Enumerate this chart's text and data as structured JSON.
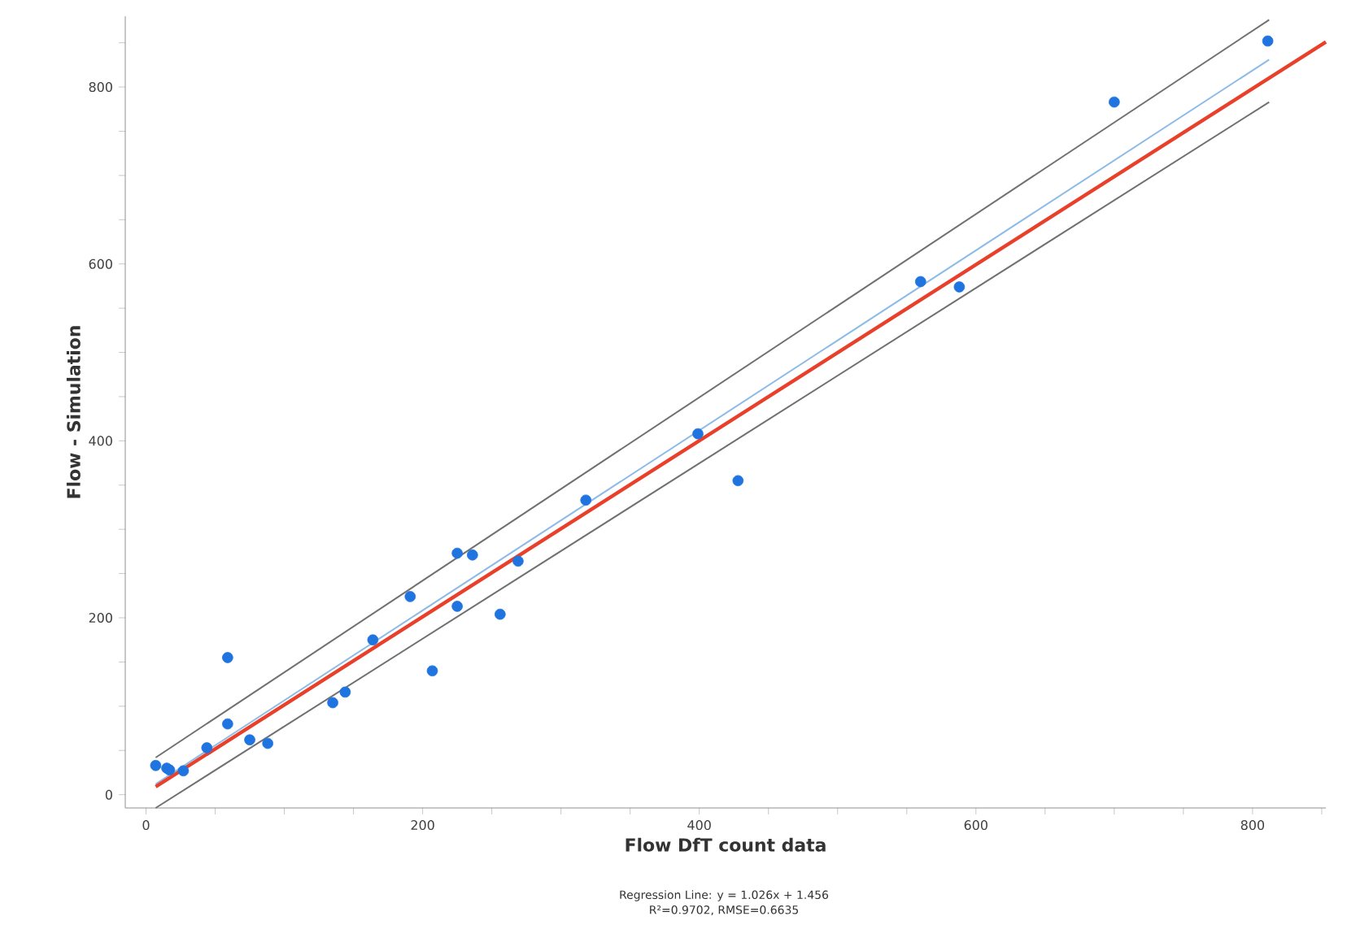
{
  "chart_data": {
    "type": "scatter",
    "xlabel": "Flow DfT count data",
    "ylabel": "Flow - Simulation",
    "annotations": [
      "Regression Line: y = 1.026x + 1.456",
      "R²=0.9702, RMSE=0.6635"
    ],
    "xlim": [
      -15,
      853
    ],
    "ylim": [
      -15,
      880
    ],
    "xticks": [
      0,
      {
        "value": 50,
        "label": null
      },
      {
        "value": 100,
        "label": null
      },
      {
        "value": 150,
        "label": null
      },
      200,
      {
        "value": 250,
        "label": null
      },
      {
        "value": 300,
        "label": null
      },
      {
        "value": 350,
        "label": null
      },
      400,
      {
        "value": 450,
        "label": null
      },
      {
        "value": 500,
        "label": null
      },
      {
        "value": 550,
        "label": null
      },
      600,
      {
        "value": 650,
        "label": null
      },
      {
        "value": 700,
        "label": null
      },
      {
        "value": 750,
        "label": null
      },
      800,
      {
        "value": 850,
        "label": null
      }
    ],
    "yticks": [
      0,
      {
        "value": 50,
        "label": null
      },
      {
        "value": 100,
        "label": null
      },
      {
        "value": 150,
        "label": null
      },
      200,
      {
        "value": 250,
        "label": null
      },
      {
        "value": 300,
        "label": null
      },
      {
        "value": 350,
        "label": null
      },
      400,
      {
        "value": 450,
        "label": null
      },
      {
        "value": 500,
        "label": null
      },
      {
        "value": 550,
        "label": null
      },
      600,
      {
        "value": 650,
        "label": null
      },
      {
        "value": 700,
        "label": null
      },
      {
        "value": 750,
        "label": null
      },
      800,
      {
        "value": 850,
        "label": null
      }
    ],
    "grid": false,
    "series": [
      {
        "type": "line",
        "color": "#707070",
        "marker": "none",
        "x": [
          7,
          812
        ],
        "values": [
          42,
          876
        ]
      },
      {
        "type": "line",
        "color": "#707070",
        "marker": "none",
        "x": [
          7,
          812
        ],
        "values": [
          -15,
          783
        ]
      },
      {
        "type": "line",
        "color": "#8dbbe8",
        "marker": "none",
        "x": [
          7,
          812
        ],
        "values": [
          12,
          831
        ]
      },
      {
        "type": "line",
        "color": "#e8402a",
        "marker": "none",
        "x": [
          7,
          853
        ],
        "values": [
          9,
          851
        ]
      },
      {
        "color": "#1f74e0",
        "marker": "circle",
        "x": [
          7,
          15,
          17,
          27,
          44,
          59,
          59,
          75,
          88,
          135,
          144,
          164,
          191,
          207,
          225,
          225,
          236,
          256,
          269,
          318,
          399,
          428,
          560,
          588,
          700,
          811
        ],
        "values": [
          33,
          30,
          28,
          27,
          53,
          155,
          80,
          62,
          58,
          104,
          116,
          175,
          224,
          140,
          213,
          273,
          271,
          204,
          264,
          333,
          408,
          355,
          580,
          574,
          783,
          852
        ]
      }
    ]
  }
}
